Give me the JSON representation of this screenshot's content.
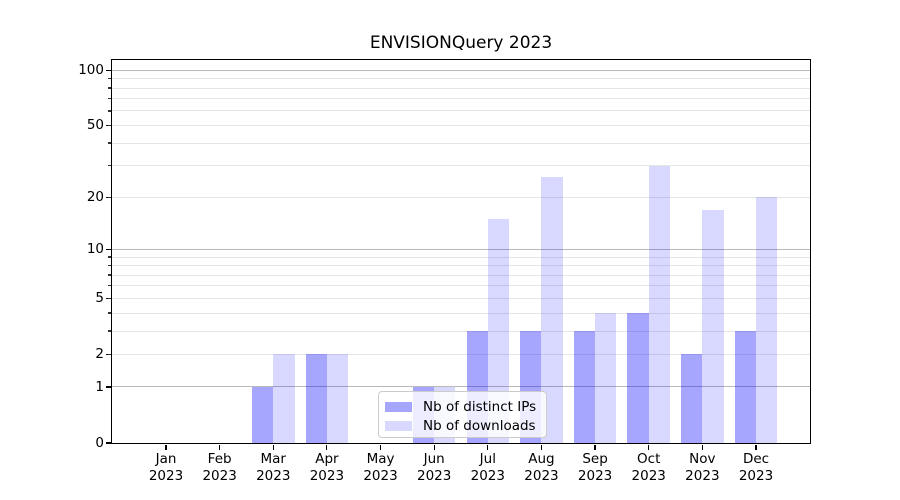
{
  "chart": {
    "title": "ENVISIONQuery 2023"
  },
  "chart_data": {
    "type": "bar",
    "title": "ENVISIONQuery 2023",
    "categories": [
      "Jan",
      "Feb",
      "Mar",
      "Apr",
      "May",
      "Jun",
      "Jul",
      "Aug",
      "Sep",
      "Oct",
      "Nov",
      "Dec"
    ],
    "year": "2023",
    "series": [
      {
        "name": "Nb of distinct IPs",
        "color_hex": "#0000ff",
        "alpha": 0.35,
        "values": [
          0,
          0,
          1,
          2,
          0,
          1,
          3,
          3,
          3,
          4,
          2,
          3
        ]
      },
      {
        "name": "Nb of downloads",
        "color_hex": "#0000ff",
        "alpha": 0.15,
        "values": [
          0,
          0,
          2,
          2,
          0,
          1,
          15,
          26,
          4,
          30,
          17,
          20
        ]
      }
    ],
    "xlabel": "",
    "ylabel": "",
    "yscale": "log1p",
    "ylim": [
      0,
      113.7
    ],
    "yticks": [
      0,
      1,
      2,
      5,
      10,
      20,
      50,
      100
    ],
    "major_gridlines": [
      1,
      10,
      100
    ],
    "minor_gridlines": [
      2,
      3,
      4,
      5,
      6,
      7,
      8,
      9,
      20,
      30,
      40,
      50,
      60,
      70,
      80,
      90
    ],
    "grid": true,
    "legend_position": "inside lower center",
    "grid_color_major": "#b9b9b9",
    "grid_color_minor": "#e6e6e6",
    "axis_color": "#000000",
    "background_color": "#ffffff"
  }
}
